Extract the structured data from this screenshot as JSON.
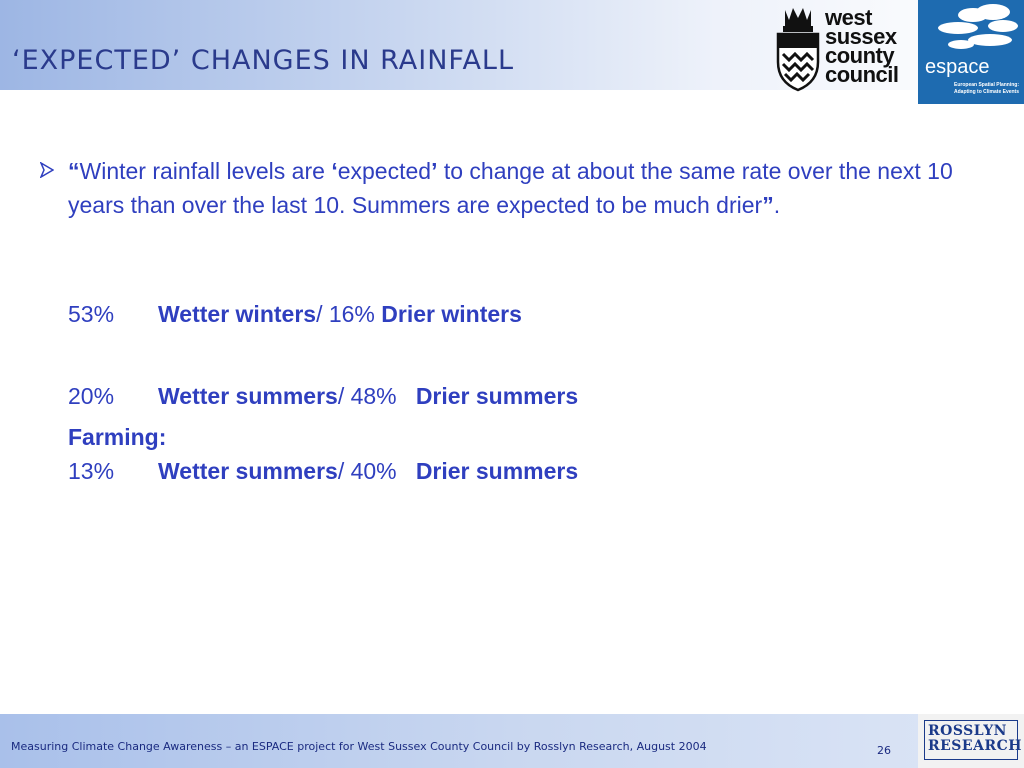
{
  "slide": {
    "title": "‘EXPECTED’ CHANGES IN RAINFALL",
    "bullet": {
      "open_quote": "“",
      "text1": "Winter rainfall levels are ",
      "lq": "‘",
      "expected": "expected",
      "rq": "’",
      "text2": " to change at about the same rate over the next 10 years than over the last 10.  Summers are expected to be much drier",
      "close_quote": "”",
      "period": "."
    },
    "stats": [
      {
        "pct1": "53%",
        "label1": "Wetter winters",
        "sep": "/ 16%",
        "label2": "Drier winters"
      },
      {
        "pct1": "20%",
        "label1": "Wetter summers",
        "sep": "/ 48%",
        "label2": "Drier summers"
      }
    ],
    "farming": {
      "heading": "Farming:",
      "pct1": "13%",
      "label1": "Wetter summers",
      "sep": "/ 40%",
      "label2": "Drier summers"
    }
  },
  "logos": {
    "wsc": [
      "west",
      "sussex",
      "county",
      "council"
    ],
    "espace_word": "espace",
    "espace_sub": [
      "European Spatial Planning:",
      "Adapting to Climate Events"
    ],
    "rosslyn": [
      "ROSSLYN",
      "RESEARCH"
    ]
  },
  "footer": {
    "text": "Measuring Climate Change Awareness – an ESPACE project for West Sussex  County Council by Rosslyn Research, August 2004",
    "page": "26"
  },
  "colors": {
    "text": "#2f3fbf",
    "title": "#2a3a8c",
    "espace_blue": "#1e6bb0"
  },
  "icons": {
    "bullet": "arrow-bullet-icon",
    "crest": "county-crest-icon",
    "clouds": "clouds-icon"
  }
}
